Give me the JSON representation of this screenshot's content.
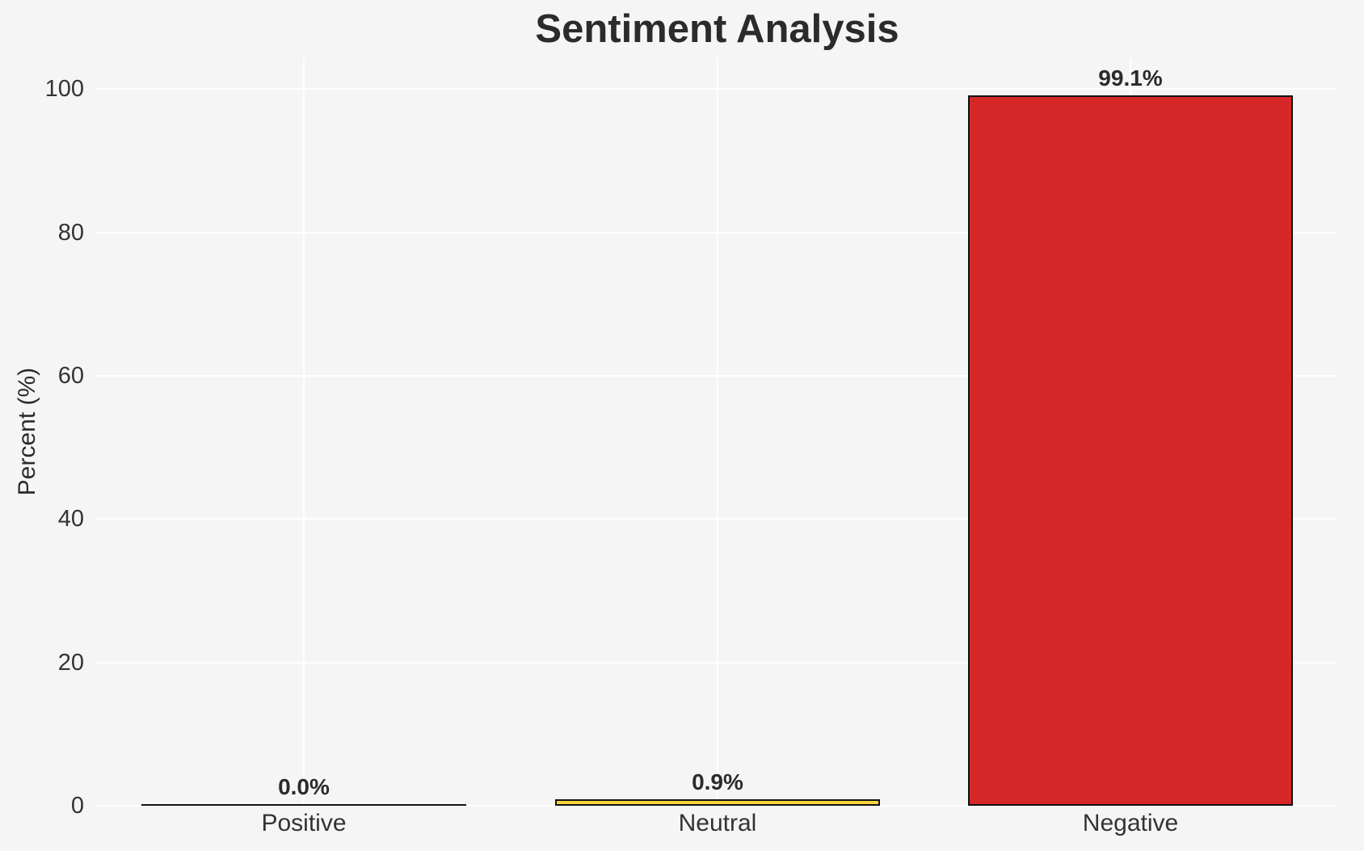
{
  "chart_data": {
    "type": "bar",
    "title": "Sentiment Analysis",
    "xlabel": "",
    "ylabel": "Percent (%)",
    "categories": [
      "Positive",
      "Neutral",
      "Negative"
    ],
    "values": [
      0.0,
      0.9,
      99.1
    ],
    "bar_labels": [
      "0.0%",
      "0.9%",
      "99.1%"
    ],
    "bar_colors": [
      null,
      "#f5d43c",
      "#d62728"
    ],
    "bar_edge_color": "#111111",
    "yticks": [
      0,
      20,
      40,
      60,
      80,
      100
    ],
    "ytick_labels": [
      "0",
      "20",
      "40",
      "60",
      "80",
      "100"
    ],
    "ylim": [
      0,
      104.3
    ],
    "grid": true,
    "legend_position": "none"
  },
  "colors": {
    "background": "#f5f5f6",
    "grid": "#ffffff",
    "title_text": "#2b2b2b",
    "tick_text": "#333333",
    "value_label_text": "#2b2b2b"
  }
}
